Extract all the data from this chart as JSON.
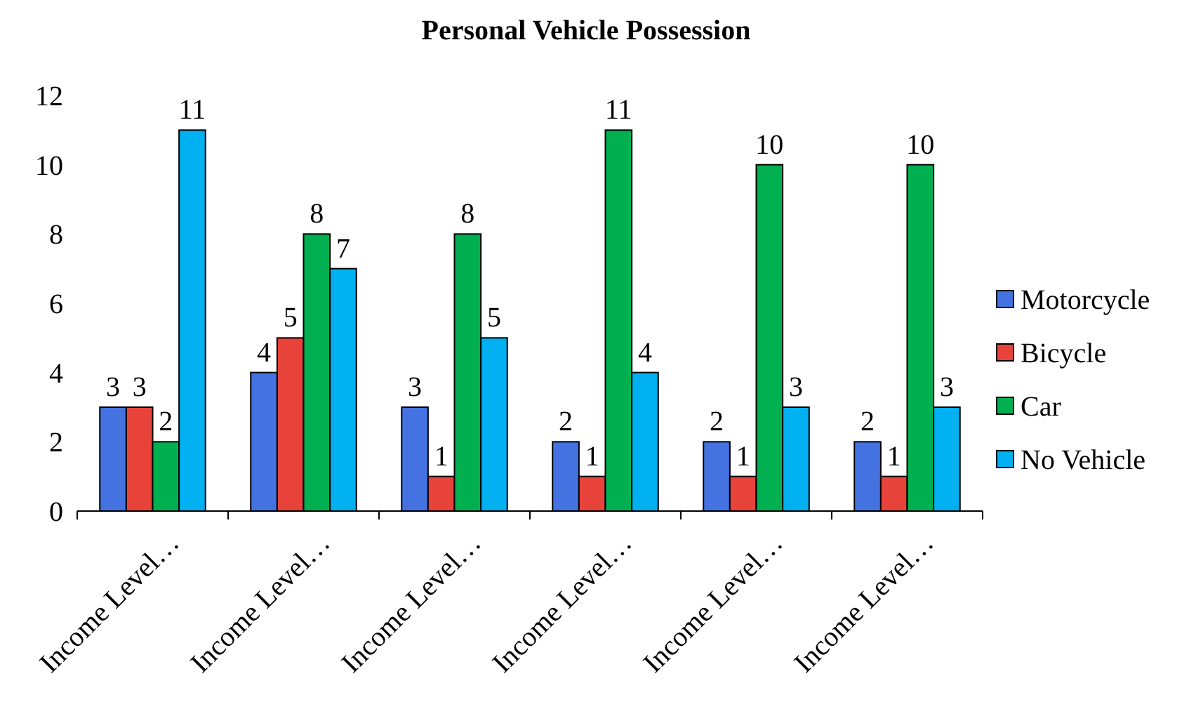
{
  "chart_data": {
    "type": "bar",
    "title": "Personal Vehicle Possession",
    "categories": [
      "Income Level…",
      "Income Level…",
      "Income Level…",
      "Income Level…",
      "Income Level…",
      "Income Level…"
    ],
    "series": [
      {
        "name": "Motorcycle",
        "color": "#4472e0",
        "values": [
          3,
          4,
          3,
          2,
          2,
          2
        ]
      },
      {
        "name": "Bicycle",
        "color": "#e8433a",
        "values": [
          3,
          5,
          1,
          1,
          1,
          1
        ]
      },
      {
        "name": "Car",
        "color": "#00b050",
        "values": [
          2,
          8,
          8,
          11,
          10,
          10
        ]
      },
      {
        "name": "No Vehicle",
        "color": "#00b0f0",
        "values": [
          11,
          7,
          5,
          4,
          3,
          3
        ]
      }
    ],
    "ylim": [
      0,
      12
    ],
    "yticks": [
      0,
      2,
      4,
      6,
      8,
      10,
      12
    ],
    "grid": false,
    "legend": "right",
    "data_labels": true
  }
}
